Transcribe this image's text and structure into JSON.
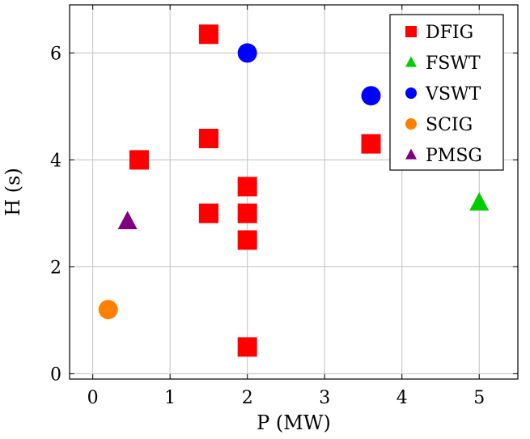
{
  "chart_data": {
    "type": "scatter",
    "title": "",
    "xlabel": "P (MW)",
    "ylabel": "H (s)",
    "xlim": [
      -0.3,
      5.5
    ],
    "ylim": [
      -0.1,
      6.9
    ],
    "xticks": [
      0,
      1,
      2,
      3,
      4,
      5
    ],
    "yticks": [
      0,
      2,
      4,
      6
    ],
    "grid": true,
    "legend_position": "top-right",
    "series": [
      {
        "name": "DFIG",
        "marker": "square",
        "color": "#ff0000",
        "points": [
          [
            1.5,
            6.35
          ],
          [
            1.5,
            4.4
          ],
          [
            0.6,
            4.0
          ],
          [
            1.5,
            3.0
          ],
          [
            2.0,
            3.5
          ],
          [
            2.0,
            3.0
          ],
          [
            2.0,
            2.5
          ],
          [
            2.0,
            0.5
          ],
          [
            3.6,
            4.3
          ]
        ]
      },
      {
        "name": "FSWT",
        "marker": "triangle",
        "color": "#00cc00",
        "points": [
          [
            5.0,
            3.2
          ]
        ]
      },
      {
        "name": "VSWT",
        "marker": "circle",
        "color": "#0000ff",
        "points": [
          [
            2.0,
            6.0
          ],
          [
            3.6,
            5.2
          ]
        ]
      },
      {
        "name": "SCIG",
        "marker": "circle",
        "color": "#ff8000",
        "points": [
          [
            0.2,
            1.2
          ]
        ]
      },
      {
        "name": "PMSG",
        "marker": "triangle",
        "color": "#800080",
        "points": [
          [
            0.45,
            2.85
          ]
        ]
      }
    ]
  }
}
